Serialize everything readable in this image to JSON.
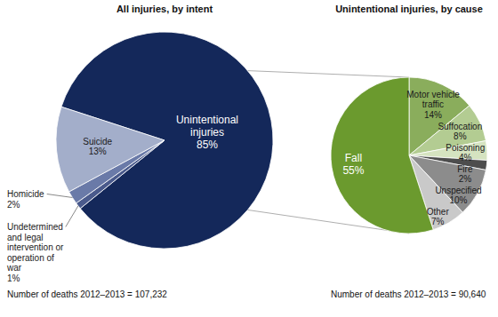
{
  "chart_data": [
    {
      "type": "pie",
      "title": "All injuries, by intent",
      "categories": [
        "Unintentional injuries",
        "Undetermined and legal intervention or operation of war",
        "Homicide",
        "Suicide"
      ],
      "values": [
        85,
        1,
        2,
        13
      ],
      "value_labels": [
        "85%",
        "1%",
        "2%",
        "13%"
      ],
      "colors": [
        "#14285a",
        "#4a5a8c",
        "#6a7aa8",
        "#a3aeca"
      ],
      "data_labels": true,
      "annotations": [
        "Number of deaths 2012–2013 = 107,232"
      ]
    },
    {
      "type": "pie",
      "title": "Unintentional injuries, by cause",
      "categories": [
        "Motor vehicle traffic",
        "Suffocation",
        "Poisoning",
        "Fire",
        "Unspecified",
        "Other",
        "Fall"
      ],
      "values": [
        14,
        8,
        4,
        2,
        10,
        7,
        55
      ],
      "value_labels": [
        "14%",
        "8%",
        "4%",
        "2%",
        "10%",
        "7%",
        "55%"
      ],
      "colors": [
        "#8aad5c",
        "#b3cc92",
        "#d5e3c0",
        "#4d4d4d",
        "#8c8c8c",
        "#c9c9c9",
        "#6b9a2e"
      ],
      "data_labels": true,
      "annotations": [
        "Number of deaths 2012–2013 = 90,640"
      ]
    }
  ]
}
